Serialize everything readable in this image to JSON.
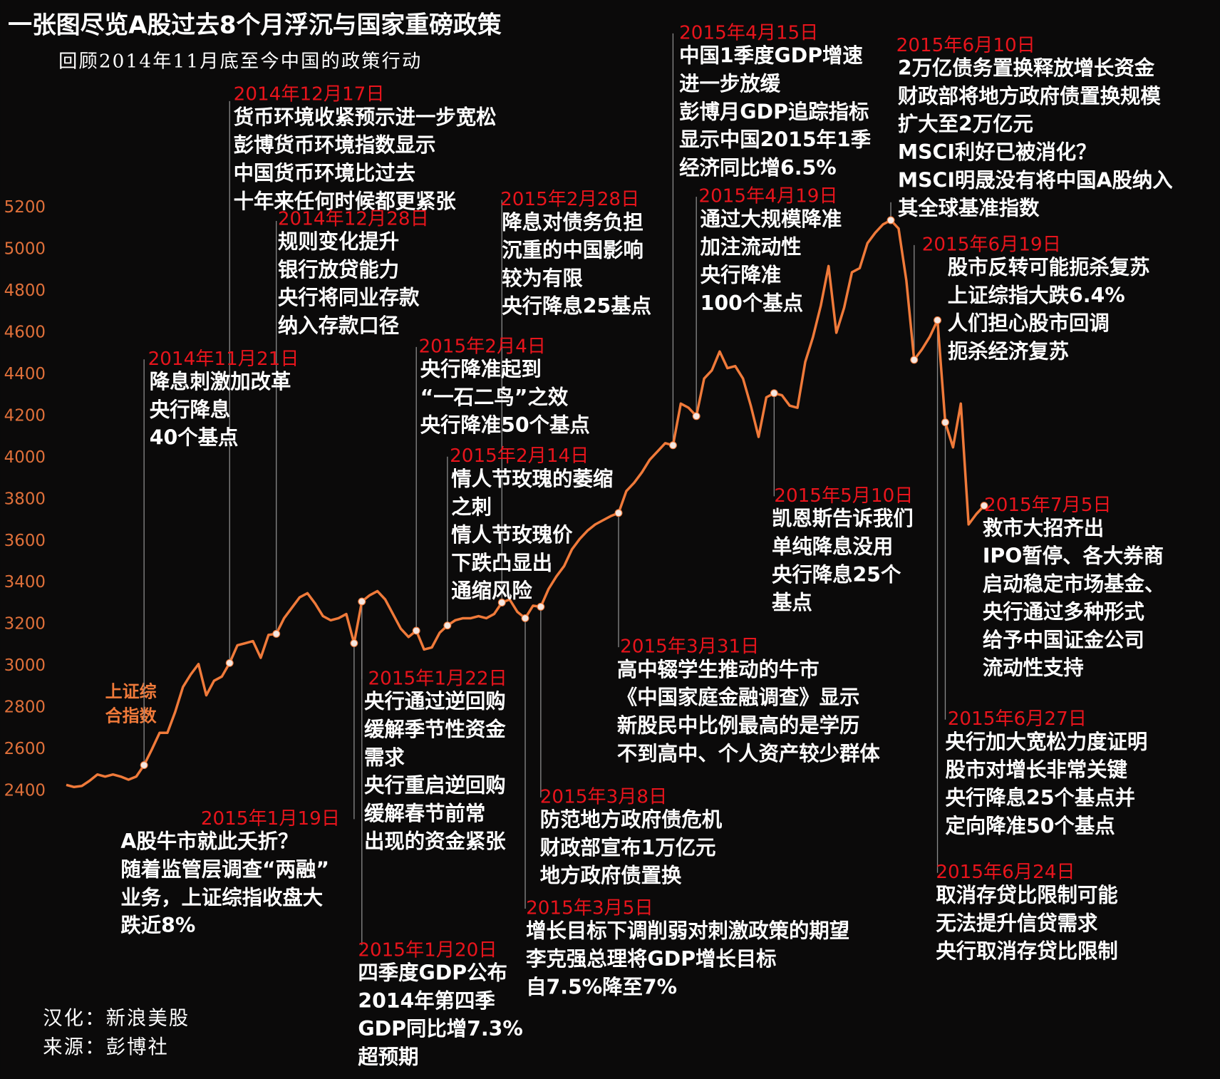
{
  "chart_data": {
    "type": "line",
    "title": "一张图尽览A股过去8个月浮沉与国家重磅政策",
    "subtitle": "回顾2014年11月底至今中国的政策行动",
    "credits": [
      "汉化：新浪美股",
      "来源：彭博社"
    ],
    "ylim": [
      2400,
      5200
    ],
    "yticks": [
      2400,
      2600,
      2800,
      3000,
      3200,
      3400,
      3600,
      3800,
      4000,
      4200,
      4400,
      4600,
      4800,
      5000,
      5200
    ],
    "grid": false,
    "series": [
      {
        "name": [
          "上证综",
          "合指数"
        ],
        "color": "#f07a3a",
        "values": [
          2430,
          2420,
          2425,
          2450,
          2480,
          2470,
          2480,
          2470,
          2455,
          2470,
          2525,
          2600,
          2680,
          2680,
          2780,
          2900,
          2960,
          3010,
          2860,
          2930,
          2950,
          3015,
          3100,
          3110,
          3120,
          3040,
          3150,
          3155,
          3230,
          3280,
          3330,
          3350,
          3300,
          3240,
          3220,
          3230,
          3250,
          3110,
          3310,
          3340,
          3360,
          3320,
          3250,
          3180,
          3140,
          3170,
          3080,
          3090,
          3160,
          3195,
          3220,
          3230,
          3230,
          3240,
          3230,
          3250,
          3305,
          3320,
          3260,
          3230,
          3290,
          3285,
          3370,
          3430,
          3480,
          3560,
          3610,
          3650,
          3680,
          3700,
          3720,
          3735,
          3840,
          3880,
          3930,
          3990,
          4030,
          4070,
          4060,
          4260,
          4240,
          4200,
          4380,
          4420,
          4510,
          4430,
          4440,
          4380,
          4250,
          4100,
          4290,
          4310,
          4300,
          4250,
          4240,
          4460,
          4580,
          4730,
          4920,
          4600,
          4720,
          4890,
          4910,
          5030,
          5080,
          5120,
          5140,
          5100,
          4850,
          4470,
          4520,
          4580,
          4660,
          4170,
          4050,
          4260,
          3680,
          3730,
          3770
        ]
      }
    ],
    "annotations": [
      {
        "date": "2014年11月21日",
        "lines": [
          "降息刺激加改革",
          "央行降息",
          "40个基点"
        ]
      },
      {
        "date": "2014年12月17日",
        "lines": [
          "货币环境收紧预示进一步宽松",
          "彭博货币环境指数显示",
          "中国货币环境比过去",
          "十年来任何时候都更紧张"
        ]
      },
      {
        "date": "2014年12月28日",
        "lines": [
          "规则变化提升",
          "银行放贷能力",
          "央行将同业存款",
          "纳入存款口径"
        ]
      },
      {
        "date": "2015年1月19日",
        "lines": [
          "A股牛市就此夭折？",
          "随着监管层调查“两融”",
          "业务，上证综指收盘大",
          "跌近8%"
        ]
      },
      {
        "date": "2015年1月20日",
        "lines": [
          "四季度GDP公布",
          "2014年第四季",
          "GDP同比增7.3%",
          "超预期"
        ]
      },
      {
        "date": "2015年1月22日",
        "lines": [
          "央行通过逆回购",
          "缓解季节性资金",
          "需求",
          "央行重启逆回购",
          "缓解春节前常",
          "出现的资金紧张"
        ]
      },
      {
        "date": "2015年2月4日",
        "lines": [
          "央行降准起到",
          "“一石二鸟”之效",
          "央行降准50个基点"
        ]
      },
      {
        "date": "2015年2月14日",
        "lines": [
          "情人节玫瑰的萎缩",
          "之刺",
          "情人节玫瑰价",
          "下跌凸显出",
          "通缩风险"
        ]
      },
      {
        "date": "2015年2月28日",
        "lines": [
          "降息对债务负担",
          "沉重的中国影响",
          "较为有限",
          "央行降息25基点"
        ]
      },
      {
        "date": "2015年3月5日",
        "lines": [
          "增长目标下调削弱对刺激政策的期望",
          "李克强总理将GDP增长目标",
          "自7.5%降至7%"
        ]
      },
      {
        "date": "2015年3月8日",
        "lines": [
          "防范地方政府债危机",
          "财政部宣布1万亿元",
          "地方政府债置换"
        ]
      },
      {
        "date": "2015年3月31日",
        "lines": [
          "高中辍学生推动的牛市",
          "《中国家庭金融调查》显示",
          "新股民中比例最高的是学历",
          "不到高中、个人资产较少群体"
        ]
      },
      {
        "date": "2015年4月15日",
        "lines": [
          "中国1季度GDP增速",
          "进一步放缓",
          "彭博月GDP追踪指标",
          "显示中国2015年1季",
          "经济同比增6.5%"
        ]
      },
      {
        "date": "2015年4月19日",
        "lines": [
          "通过大规模降准",
          "加注流动性",
          "央行降准",
          "100个基点"
        ]
      },
      {
        "date": "2015年5月10日",
        "lines": [
          "凯恩斯告诉我们",
          "单纯降息没用",
          "央行降息25个",
          "基点"
        ]
      },
      {
        "date": "2015年6月10日",
        "lines": [
          "2万亿债务置换释放增长资金",
          "财政部将地方政府债置换规模",
          "扩大至2万亿元",
          "MSCI利好已被消化？",
          "MSCI明晟没有将中国A股纳入",
          "其全球基准指数"
        ]
      },
      {
        "date": "2015年6月19日",
        "lines": [
          "股市反转可能扼杀复苏",
          "上证综指大跌6.4%",
          "人们担心股市回调",
          "扼杀经济复苏"
        ]
      },
      {
        "date": "2015年6月24日",
        "lines": [
          "取消存贷比限制可能",
          "无法提升信贷需求",
          "央行取消存贷比限制"
        ]
      },
      {
        "date": "2015年6月27日",
        "lines": [
          "央行加大宽松力度证明",
          "股市对增长非常关键",
          "央行降息25个基点并",
          "定向降准50个基点"
        ]
      },
      {
        "date": "2015年7月5日",
        "lines": [
          "救市大招齐出",
          "IPO暂停、各大券商",
          "启动稳定市场基金、",
          "央行通过多种形式",
          "给予中国证金公司",
          "流动性支持"
        ]
      }
    ]
  }
}
